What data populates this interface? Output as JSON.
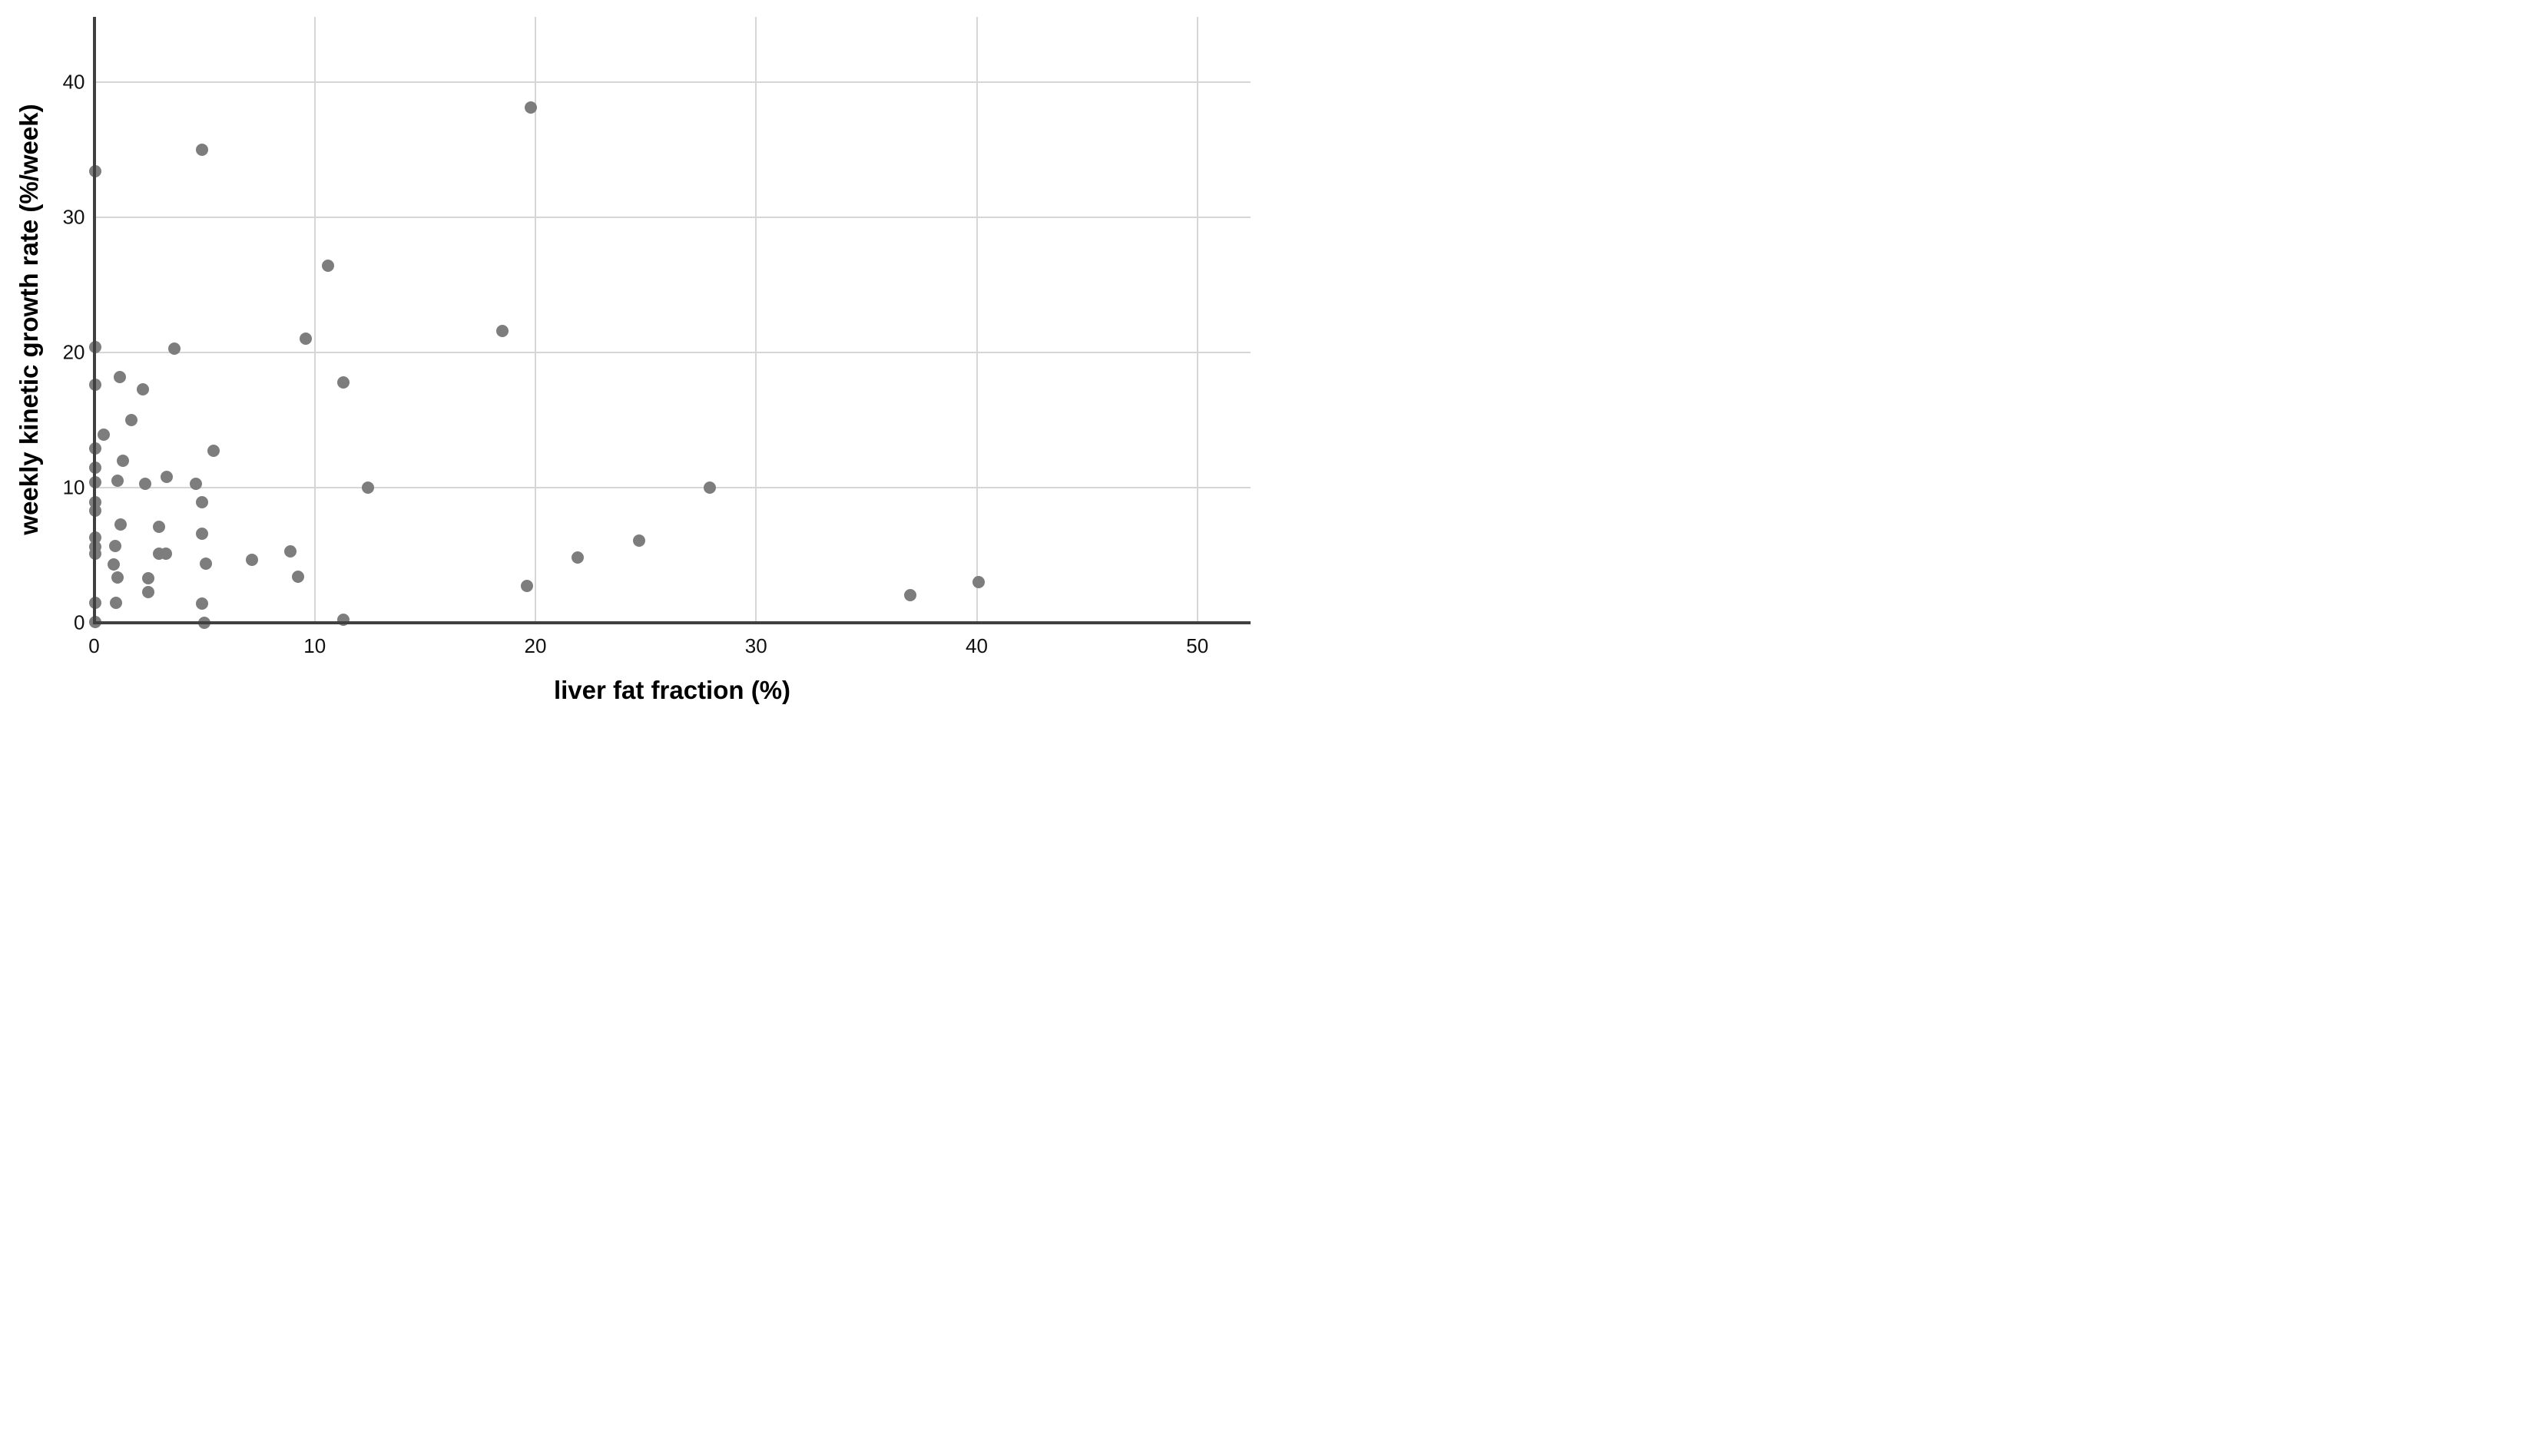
{
  "figure": {
    "background": "#ffffff"
  },
  "chart_data": {
    "type": "scatter",
    "title": "",
    "xlabel": "liver fat fraction (%)",
    "ylabel": "weekly kinetic growth rate (%/week)",
    "x_ticks": [
      "0",
      "10",
      "20",
      "30",
      "40",
      "50"
    ],
    "x_tick_values": [
      0,
      10,
      20,
      30,
      40,
      50
    ],
    "y_ticks": [
      "0",
      "10",
      "20",
      "30",
      "40"
    ],
    "y_tick_values": [
      0,
      10,
      20,
      30,
      40
    ],
    "xlim": [
      0,
      52.4
    ],
    "ylim": [
      0,
      44.8
    ],
    "grid": true,
    "legend_position": "none",
    "point_color": "#7d7d7d",
    "grid_color": "#d6d6d6",
    "axis_color": "#404040",
    "points": [
      [
        0.05,
        33.4
      ],
      [
        0.05,
        20.4
      ],
      [
        0.05,
        17.6
      ],
      [
        0.05,
        12.9
      ],
      [
        0.05,
        11.5
      ],
      [
        0.05,
        10.4
      ],
      [
        0.05,
        8.9
      ],
      [
        0.05,
        8.3
      ],
      [
        0.05,
        6.3
      ],
      [
        0.05,
        5.65
      ],
      [
        0.05,
        5.1
      ],
      [
        0.05,
        1.45
      ],
      [
        0.05,
        0.05
      ],
      [
        0.45,
        13.9
      ],
      [
        1.15,
        18.2
      ],
      [
        2.2,
        17.3
      ],
      [
        1.7,
        15.0
      ],
      [
        1.3,
        12.0
      ],
      [
        1.05,
        10.5
      ],
      [
        2.3,
        10.3
      ],
      [
        3.3,
        10.8
      ],
      [
        4.6,
        10.3
      ],
      [
        5.4,
        12.7
      ],
      [
        1.2,
        7.3
      ],
      [
        2.95,
        7.1
      ],
      [
        4.9,
        8.9
      ],
      [
        4.9,
        6.6
      ],
      [
        0.95,
        5.7
      ],
      [
        2.95,
        5.1
      ],
      [
        3.25,
        5.1
      ],
      [
        0.9,
        4.3
      ],
      [
        5.05,
        4.4
      ],
      [
        1.05,
        3.35
      ],
      [
        2.45,
        3.3
      ],
      [
        2.45,
        2.3
      ],
      [
        1.0,
        1.5
      ],
      [
        4.9,
        1.4
      ],
      [
        5.0,
        0.0
      ],
      [
        7.15,
        4.65
      ],
      [
        8.9,
        5.3
      ],
      [
        9.25,
        3.4
      ],
      [
        11.3,
        0.2
      ],
      [
        9.6,
        21.0
      ],
      [
        3.65,
        20.3
      ],
      [
        10.6,
        26.4
      ],
      [
        11.3,
        17.8
      ],
      [
        12.4,
        10.0
      ],
      [
        18.5,
        21.6
      ],
      [
        19.8,
        38.1
      ],
      [
        4.9,
        35.0
      ],
      [
        19.6,
        2.75
      ],
      [
        21.9,
        4.85
      ],
      [
        24.7,
        6.1
      ],
      [
        27.9,
        10.0
      ],
      [
        37.0,
        2.05
      ],
      [
        40.1,
        3.0
      ]
    ]
  }
}
